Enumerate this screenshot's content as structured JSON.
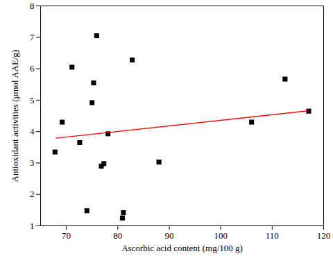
{
  "chart_data": {
    "type": "scatter",
    "x_label": "Ascorbic acid content (mg/100 g)",
    "y_label": "Antioxidant activities (μmol AAE/g)",
    "xlim": [
      65,
      120
    ],
    "xticks": [
      70,
      80,
      90,
      100,
      110,
      120
    ],
    "ylim": [
      1,
      8
    ],
    "yticks": [
      1,
      2,
      3,
      4,
      5,
      6,
      7,
      8
    ],
    "grid": false,
    "series": [
      {
        "type": "scatter",
        "marker": "square",
        "color": "#000000",
        "x": [
          67.8,
          69.2,
          71.1,
          72.6,
          74.0,
          75.0,
          75.3,
          75.9,
          76.8,
          77.3,
          78.1,
          80.9,
          81.1,
          82.8,
          88.0,
          106.0,
          112.5,
          117.1
        ],
        "values": [
          3.35,
          4.3,
          6.05,
          3.65,
          1.48,
          4.92,
          5.55,
          7.05,
          2.9,
          2.98,
          3.93,
          1.25,
          1.42,
          6.28,
          3.03,
          4.3,
          5.67,
          4.65
        ]
      },
      {
        "type": "line",
        "line_style": "solid",
        "color": "#ff0000",
        "x": [
          68,
          117
        ],
        "values": [
          3.79,
          4.66
        ]
      }
    ]
  }
}
